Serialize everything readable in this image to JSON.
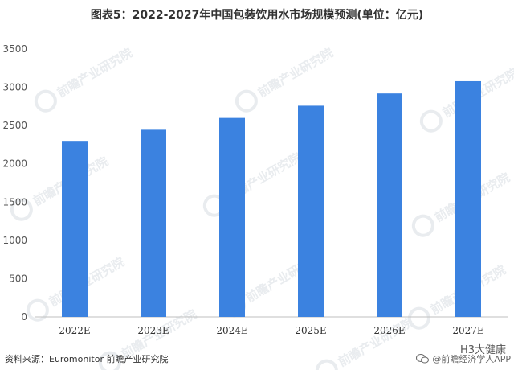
{
  "chart_data": {
    "type": "bar",
    "title": "图表5：2022-2027年中国包装饮用水市场规模预测(单位：亿元)",
    "xlabel": "",
    "ylabel": "",
    "categories": [
      "2022E",
      "2023E",
      "2024E",
      "2025E",
      "2026E",
      "2027E"
    ],
    "values": [
      2300,
      2445,
      2600,
      2760,
      2920,
      3080
    ],
    "ylim": [
      0,
      3500
    ],
    "yticks": [
      0,
      500,
      1000,
      1500,
      2000,
      2500,
      3000,
      3500
    ],
    "grid": false,
    "legend": "none",
    "bar_color": "#3b82e0"
  },
  "source_text": "资料来源：Euromonitor 前瞻产业研究院",
  "footer": {
    "brand_line": "H3大健康",
    "credit": "@前瞻经济学人APP",
    "icon": "wechat-icon"
  },
  "watermark": {
    "text": "前瞻产业研究院",
    "color": "#e9ecef"
  }
}
